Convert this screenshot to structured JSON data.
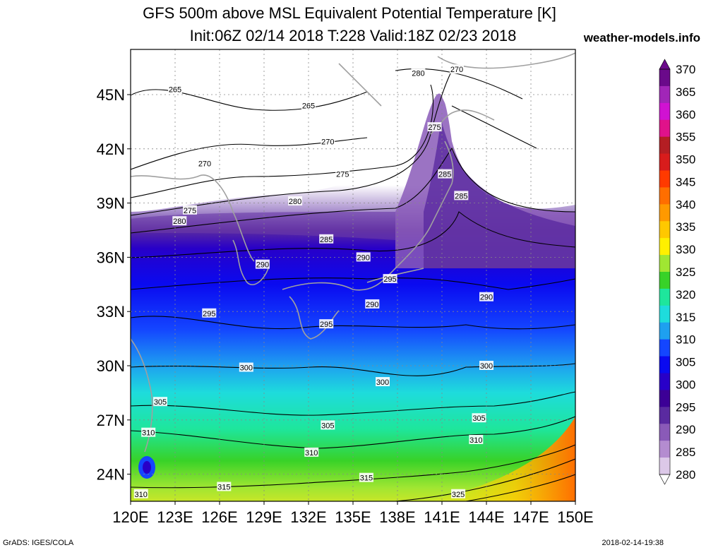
{
  "title": "GFS 500m above MSL Equivalent Potential Temperature [K]",
  "subtitle": "Init:06Z 02/14 2018 T:228 Valid:18Z 02/23 2018",
  "site": "weather-models.info",
  "footer_left": "GrADS: IGES/COLA",
  "footer_right": "2018-02-14-19:38",
  "map": {
    "lat_range": [
      22.5,
      47.5
    ],
    "lon_range": [
      120,
      150
    ],
    "lat_labels": [
      "45N",
      "42N",
      "39N",
      "36N",
      "33N",
      "30N",
      "27N",
      "24N"
    ],
    "lat_values": [
      45,
      42,
      39,
      36,
      33,
      30,
      27,
      24
    ],
    "lon_labels": [
      "120E",
      "123E",
      "126E",
      "129E",
      "132E",
      "135E",
      "138E",
      "141E",
      "144E",
      "147E",
      "150E"
    ],
    "lon_values": [
      120,
      123,
      126,
      129,
      132,
      135,
      138,
      141,
      144,
      147,
      150
    ],
    "contour_labels": [
      {
        "text": "265",
        "lon": 123.0,
        "lat": 45.3
      },
      {
        "text": "265",
        "lon": 132.0,
        "lat": 44.4
      },
      {
        "text": "270",
        "lon": 133.3,
        "lat": 42.4
      },
      {
        "text": "270",
        "lon": 125.0,
        "lat": 41.2
      },
      {
        "text": "275",
        "lon": 134.3,
        "lat": 40.6
      },
      {
        "text": "275",
        "lon": 124.0,
        "lat": 38.6
      },
      {
        "text": "280",
        "lon": 131.1,
        "lat": 39.1
      },
      {
        "text": "280",
        "lon": 123.3,
        "lat": 38.0
      },
      {
        "text": "280",
        "lon": 139.4,
        "lat": 46.2
      },
      {
        "text": "270",
        "lon": 142.0,
        "lat": 46.4
      },
      {
        "text": "275",
        "lon": 140.5,
        "lat": 43.2
      },
      {
        "text": "285",
        "lon": 133.2,
        "lat": 37.0
      },
      {
        "text": "285",
        "lon": 141.2,
        "lat": 40.6
      },
      {
        "text": "285",
        "lon": 142.3,
        "lat": 39.4
      },
      {
        "text": "290",
        "lon": 128.9,
        "lat": 35.6
      },
      {
        "text": "290",
        "lon": 135.7,
        "lat": 36.0
      },
      {
        "text": "290",
        "lon": 136.3,
        "lat": 33.4
      },
      {
        "text": "290",
        "lon": 144.0,
        "lat": 33.8
      },
      {
        "text": "295",
        "lon": 137.5,
        "lat": 34.8
      },
      {
        "text": "295",
        "lon": 125.3,
        "lat": 32.9
      },
      {
        "text": "295",
        "lon": 133.2,
        "lat": 32.3
      },
      {
        "text": "300",
        "lon": 127.8,
        "lat": 29.9
      },
      {
        "text": "300",
        "lon": 137.0,
        "lat": 29.1
      },
      {
        "text": "300",
        "lon": 144.0,
        "lat": 30.0
      },
      {
        "text": "305",
        "lon": 122.0,
        "lat": 28.0
      },
      {
        "text": "305",
        "lon": 133.3,
        "lat": 26.7
      },
      {
        "text": "305",
        "lon": 143.5,
        "lat": 27.1
      },
      {
        "text": "310",
        "lon": 121.2,
        "lat": 26.3
      },
      {
        "text": "310",
        "lon": 132.2,
        "lat": 25.2
      },
      {
        "text": "310",
        "lon": 143.3,
        "lat": 25.9
      },
      {
        "text": "310",
        "lon": 120.7,
        "lat": 22.9
      },
      {
        "text": "315",
        "lon": 126.3,
        "lat": 23.3
      },
      {
        "text": "315",
        "lon": 135.9,
        "lat": 23.8
      },
      {
        "text": "325",
        "lon": 142.1,
        "lat": 22.9
      }
    ]
  },
  "colorbar": {
    "labels": [
      "370",
      "365",
      "360",
      "355",
      "350",
      "345",
      "340",
      "335",
      "330",
      "325",
      "320",
      "315",
      "310",
      "305",
      "300",
      "295",
      "290",
      "285",
      "280"
    ],
    "colors": [
      "#6a0a8a",
      "#a126b8",
      "#d012d2",
      "#e0128a",
      "#b41e23",
      "#d81c1c",
      "#ff3a00",
      "#ff6e00",
      "#ff9900",
      "#ffc800",
      "#fff000",
      "#a0e632",
      "#38d228",
      "#1ee69c",
      "#1edcdc",
      "#1ea0f0",
      "#1446ff",
      "#0a0af0",
      "#2800c8",
      "#3c0096",
      "#5a2aa0",
      "#8a5ab8",
      "#b48cd0",
      "#dcc8e8"
    ]
  }
}
